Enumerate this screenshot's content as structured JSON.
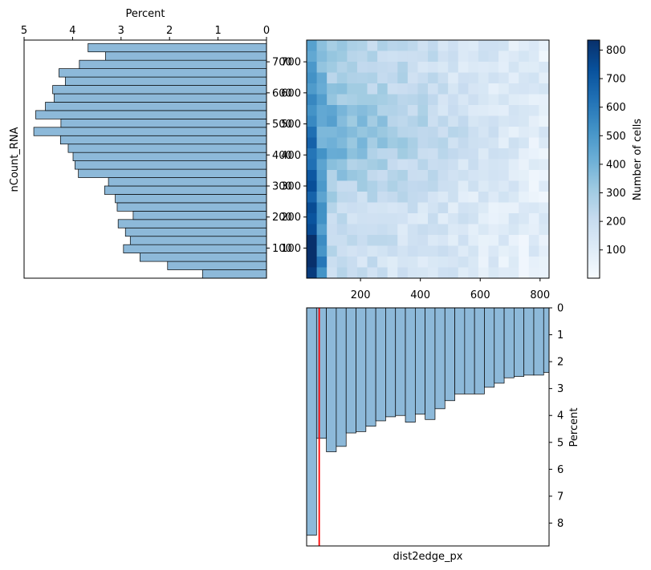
{
  "chart_data": [
    {
      "type": "bar",
      "orientation": "horizontal",
      "panel": "left-histogram",
      "xlabel": "Percent",
      "ylabel": "nCount_RNA",
      "xlim": [
        5,
        0
      ],
      "ylim": [
        3,
        770
      ],
      "xticks": [
        "5",
        "4",
        "3",
        "2",
        "1",
        "0"
      ],
      "yticks": [
        "100",
        "200",
        "300",
        "400",
        "500",
        "600",
        "700"
      ],
      "bin_edges": [
        3,
        30,
        57,
        84,
        111,
        138,
        165,
        192,
        219,
        246,
        273,
        300,
        327,
        354,
        381,
        408,
        435,
        462,
        489,
        516,
        543,
        570,
        597,
        624,
        651,
        678,
        705,
        732,
        759
      ],
      "values": [
        1.32,
        2.04,
        2.61,
        2.95,
        2.81,
        2.91,
        3.06,
        2.75,
        3.08,
        3.12,
        3.34,
        3.26,
        3.88,
        3.95,
        3.99,
        4.09,
        4.25,
        4.8,
        4.24,
        4.76,
        4.56,
        4.38,
        4.41,
        4.15,
        4.28,
        3.86,
        3.32,
        3.68
      ]
    },
    {
      "type": "heatmap",
      "panel": "joint-2d-histogram",
      "xlabel": "",
      "ylabel": "",
      "xlim": [
        20,
        830
      ],
      "ylim": [
        3,
        770
      ],
      "xticks": [
        "200",
        "400",
        "600",
        "800"
      ],
      "yticks": [
        "100",
        "200",
        "300",
        "400",
        "500",
        "600",
        "700"
      ],
      "grid_cols": 24,
      "grid_rows": 22,
      "colorbar_label": "Number of cells",
      "colorbar_ticks": [
        "100",
        "200",
        "300",
        "400",
        "500",
        "600",
        "700",
        "800"
      ],
      "vmin": 1,
      "vmax": 835,
      "colormap": [
        "#f7fbff",
        "#deebf7",
        "#c6dbef",
        "#9ecae1",
        "#6baed6",
        "#4292c6",
        "#2171b5",
        "#08519c",
        "#08306b"
      ]
    },
    {
      "type": "bar",
      "orientation": "vertical",
      "panel": "bottom-histogram",
      "xlabel": "dist2edge_px",
      "ylabel": "Percent",
      "xlim": [
        20,
        830
      ],
      "ylim": [
        8.85,
        0
      ],
      "yticks": [
        "0",
        "1",
        "2",
        "3",
        "4",
        "5",
        "6",
        "7",
        "8"
      ],
      "bin_edges": [
        20,
        53,
        86,
        119,
        152,
        185,
        218,
        251,
        284,
        317,
        350,
        383,
        416,
        449,
        482,
        515,
        548,
        581,
        614,
        647,
        680,
        713,
        746,
        779,
        812,
        830
      ],
      "values": [
        8.45,
        4.85,
        5.35,
        5.15,
        4.65,
        4.6,
        4.4,
        4.2,
        4.05,
        4.0,
        4.25,
        3.95,
        4.15,
        3.75,
        3.45,
        3.2,
        3.2,
        3.2,
        2.95,
        2.8,
        2.6,
        2.55,
        2.5,
        2.5,
        2.4
      ],
      "reference_line": {
        "x": 62,
        "color": "#ff0000"
      }
    }
  ],
  "colors": {
    "bar_fill": "#8db9d9",
    "bar_edge": "#000000",
    "reference_line": "#ff0000"
  }
}
